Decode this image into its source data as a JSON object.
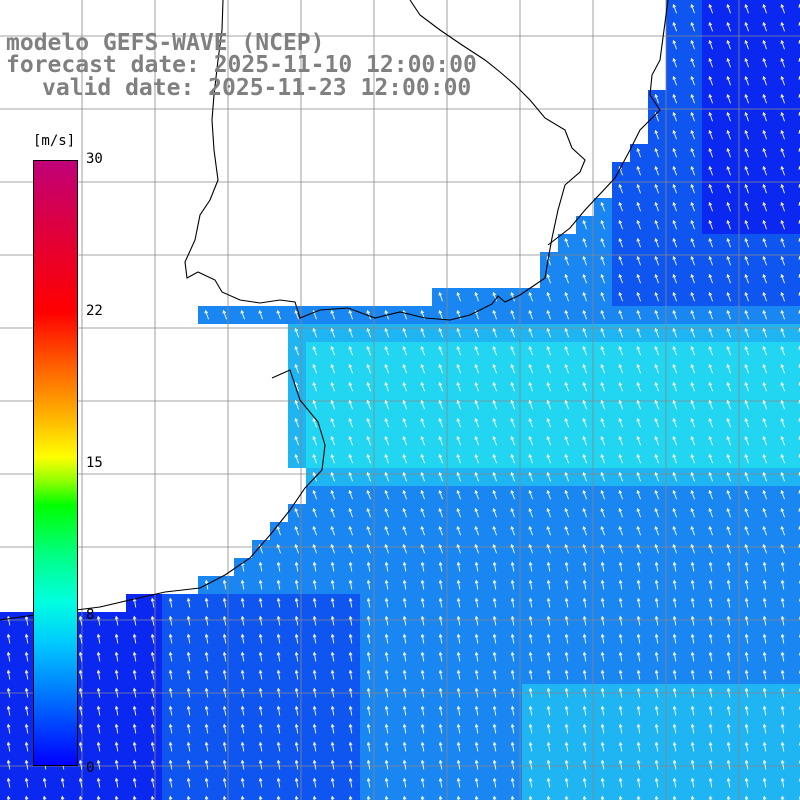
{
  "title": {
    "model": "modelo GEFS-WAVE (NCEP)",
    "forecast": "forecast date: 2025-11-10 12:00:00",
    "valid": "valid date: 2025-11-23 12:00:00"
  },
  "colorbar": {
    "unit": "[m/s]",
    "ticks": [
      "30",
      "22",
      "15",
      "8",
      "0"
    ],
    "range": [
      0,
      30
    ],
    "colors": [
      "#0000ff",
      "#00ffe0",
      "#00ff00",
      "#ffff00",
      "#ff0000",
      "#c00078"
    ]
  },
  "map": {
    "land_color": "#ffffff",
    "coast_color": "#000000",
    "grid_color": "#888888",
    "vector_color": "#ffffff",
    "ocean_colors": [
      "#0a28f0",
      "#0f55f0",
      "#1a86f2",
      "#1fb5f2",
      "#22d6f2"
    ]
  }
}
